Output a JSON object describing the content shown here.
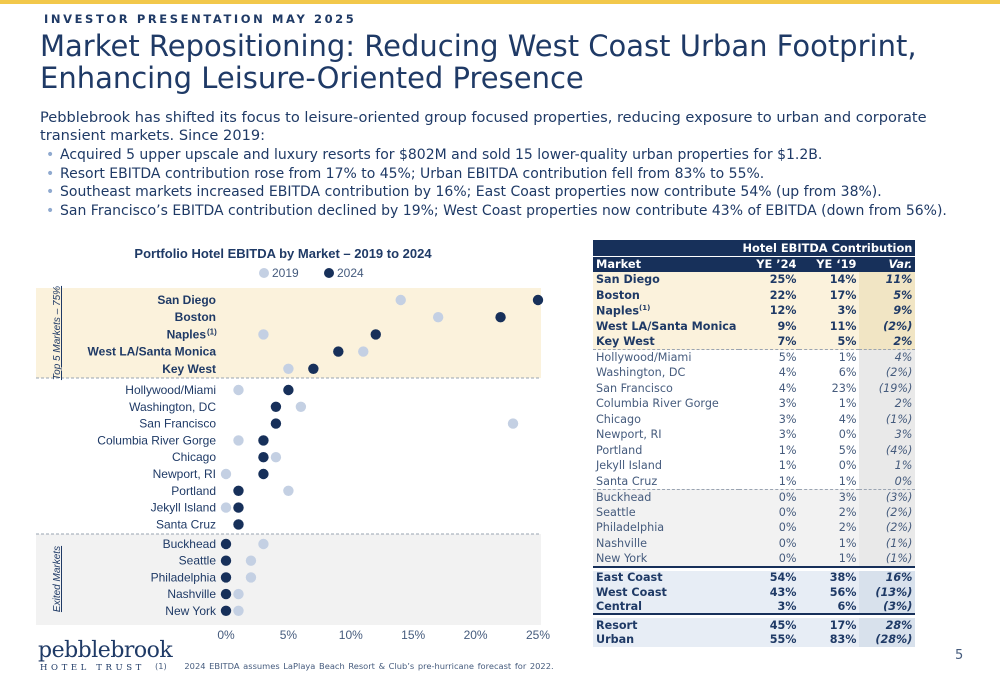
{
  "header": {
    "kicker": "INVESTOR PRESENTATION MAY 2025",
    "title_line1": "Market Repositioning: Reducing West Coast Urban Footprint,",
    "title_line2": "Enhancing Leisure-Oriented Presence",
    "intro": "Pebblebrook has shifted its focus to leisure-oriented group focused properties, reducing exposure to urban and corporate transient markets. Since 2019:",
    "bullets": [
      "Acquired 5 upper upscale and luxury resorts for $802M and sold 15 lower-quality urban properties for $1.2B.",
      "Resort EBITDA contribution rose from 17% to 45%; Urban EBITDA contribution fell from 83% to 55%.",
      "Southeast markets increased EBITDA contribution by 16%; East Coast properties now contribute 54% (up from 38%).",
      "San Francisco’s EBITDA contribution declined by 19%; West Coast properties now contribute 43% of EBITDA (down from 56%)."
    ]
  },
  "chart_data": {
    "type": "dumbbell",
    "title": "Portfolio Hotel EBITDA by Market – 2019 to 2024",
    "legend": [
      "2019",
      "2024"
    ],
    "legend_position": "top",
    "colors": {
      "2019": "#c4d0e3",
      "2024": "#17305a",
      "top_band": "#fbf2dc",
      "exit_band": "#f2f2f2"
    },
    "xlim": [
      0,
      25
    ],
    "x_ticks": [
      "0%",
      "5%",
      "10%",
      "15%",
      "20%",
      "25%"
    ],
    "group_labels": {
      "top5": "Top 5 Markets – 75%",
      "exited": "Exited Markets"
    },
    "categories": [
      "San Diego",
      "Boston",
      "Naples",
      "West LA/Santa Monica",
      "Key West",
      "Hollywood/Miami",
      "Washington, DC",
      "San Francisco",
      "Columbia River Gorge",
      "Chicago",
      "Newport, RI",
      "Portland",
      "Jekyll Island",
      "Santa Cruz",
      "Buckhead",
      "Seattle",
      "Philadelphia",
      "Nashville",
      "New York"
    ],
    "category_superscript": {
      "Naples": "(1)"
    },
    "bold_categories": [
      "San Diego",
      "Boston",
      "Naples",
      "West LA/Santa Monica",
      "Key West"
    ],
    "series": [
      {
        "name": "2019",
        "values": [
          14,
          17,
          3,
          11,
          5,
          1,
          6,
          23,
          1,
          4,
          0,
          5,
          0,
          1,
          3,
          2,
          2,
          1,
          1
        ]
      },
      {
        "name": "2024",
        "values": [
          25,
          22,
          12,
          9,
          7,
          5,
          4,
          4,
          3,
          3,
          3,
          1,
          1,
          1,
          0,
          0,
          0,
          0,
          0
        ]
      }
    ]
  },
  "table": {
    "group_header": "Hotel EBITDA Contribution",
    "columns": [
      "Market",
      "YE ’24",
      "YE ‘19",
      "Var."
    ],
    "rows": [
      {
        "market": "San Diego",
        "ye24": "25%",
        "ye19": "14%",
        "var": "11%",
        "group": "top"
      },
      {
        "market": "Boston",
        "ye24": "22%",
        "ye19": "17%",
        "var": "5%",
        "group": "top"
      },
      {
        "market": "Naples",
        "sup": "(1)",
        "ye24": "12%",
        "ye19": "3%",
        "var": "9%",
        "group": "top"
      },
      {
        "market": "West LA/Santa Monica",
        "ye24": "9%",
        "ye19": "11%",
        "var": "(2%)",
        "neg": true,
        "group": "top"
      },
      {
        "market": "Key West",
        "ye24": "7%",
        "ye19": "5%",
        "var": "2%",
        "group": "top"
      },
      {
        "market": "Hollywood/Miami",
        "ye24": "5%",
        "ye19": "1%",
        "var": "4%",
        "group": "mid"
      },
      {
        "market": "Washington, DC",
        "ye24": "4%",
        "ye19": "6%",
        "var": "(2%)",
        "neg": true,
        "group": "mid"
      },
      {
        "market": "San Francisco",
        "ye24": "4%",
        "ye19": "23%",
        "var": "(19%)",
        "neg": true,
        "group": "mid"
      },
      {
        "market": "Columbia River Gorge",
        "ye24": "3%",
        "ye19": "1%",
        "var": "2%",
        "group": "mid"
      },
      {
        "market": "Chicago",
        "ye24": "3%",
        "ye19": "4%",
        "var": "(1%)",
        "neg": true,
        "group": "mid"
      },
      {
        "market": "Newport, RI",
        "ye24": "3%",
        "ye19": "0%",
        "var": "3%",
        "group": "mid"
      },
      {
        "market": "Portland",
        "ye24": "1%",
        "ye19": "5%",
        "var": "(4%)",
        "neg": true,
        "group": "mid"
      },
      {
        "market": "Jekyll Island",
        "ye24": "1%",
        "ye19": "0%",
        "var": "1%",
        "group": "mid"
      },
      {
        "market": "Santa Cruz",
        "ye24": "1%",
        "ye19": "1%",
        "var": "0%",
        "group": "mid"
      },
      {
        "market": "Buckhead",
        "ye24": "0%",
        "ye19": "3%",
        "var": "(3%)",
        "neg": true,
        "group": "exit"
      },
      {
        "market": "Seattle",
        "ye24": "0%",
        "ye19": "2%",
        "var": "(2%)",
        "neg": true,
        "group": "exit"
      },
      {
        "market": "Philadelphia",
        "ye24": "0%",
        "ye19": "2%",
        "var": "(2%)",
        "neg": true,
        "group": "exit"
      },
      {
        "market": "Nashville",
        "ye24": "0%",
        "ye19": "1%",
        "var": "(1%)",
        "neg": true,
        "group": "exit"
      },
      {
        "market": "New York",
        "ye24": "0%",
        "ye19": "1%",
        "var": "(1%)",
        "neg": true,
        "group": "exit"
      }
    ],
    "geo_rows": [
      {
        "market": "East Coast",
        "ye24": "54%",
        "ye19": "38%",
        "var": "16%"
      },
      {
        "market": "West Coast",
        "ye24": "43%",
        "ye19": "56%",
        "var": "(13%)",
        "neg": true
      },
      {
        "market": "Central",
        "ye24": "3%",
        "ye19": "6%",
        "var": "(3%)",
        "neg": true
      }
    ],
    "type_rows": [
      {
        "market": "Resort",
        "ye24": "45%",
        "ye19": "17%",
        "var": "28%"
      },
      {
        "market": "Urban",
        "ye24": "55%",
        "ye19": "83%",
        "var": "(28%)",
        "neg": true
      }
    ]
  },
  "footer": {
    "logo_word": "pebblebrook",
    "logo_sub": "HOTEL TRUST",
    "footnote_marker": "(1)",
    "footnote": "2024 EBITDA assumes LaPlaya Beach Resort & Club’s pre-hurricane forecast for 2022.",
    "page_number": "5"
  }
}
